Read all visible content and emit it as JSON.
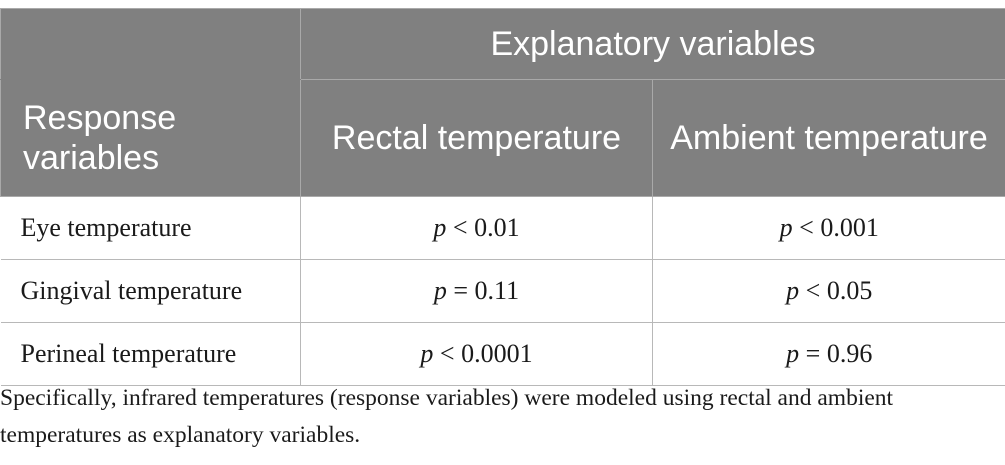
{
  "table": {
    "header": {
      "group_label": "Explanatory variables",
      "response_label": "Response variables",
      "columns": [
        "Rectal temperature",
        "Ambient temperature"
      ]
    },
    "rows": [
      {
        "name": "Eye temperature",
        "rectal": {
          "p": "p",
          "rest": " < 0.01"
        },
        "ambient": {
          "p": "p",
          "rest": " < 0.001"
        }
      },
      {
        "name": "Gingival temperature",
        "rectal": {
          "p": "p",
          "rest": " = 0.11"
        },
        "ambient": {
          "p": "p",
          "rest": " < 0.05"
        }
      },
      {
        "name": "Perineal temperature",
        "rectal": {
          "p": "p",
          "rest": " < 0.0001"
        },
        "ambient": {
          "p": "p",
          "rest": " = 0.96"
        }
      }
    ]
  },
  "footnote": "Specifically, infrared temperatures (response variables) were modeled using rectal and ambient temperatures as explanatory variables."
}
